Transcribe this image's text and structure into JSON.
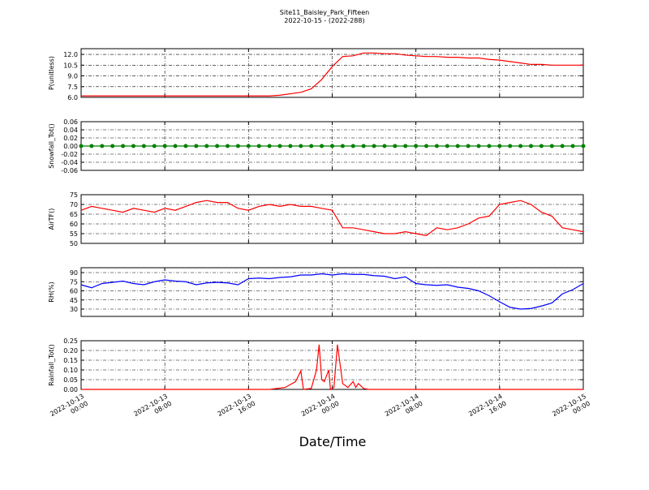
{
  "title": "Site11_Baisley_Park_Fifteen",
  "subtitle": "2022-10-15 - (2022-288)",
  "xlabel": "Date/Time",
  "chart_data": [
    {
      "type": "line",
      "ylabel": "P(unitless)",
      "color": "#ff0000",
      "grid": true,
      "xlim": [
        "2022-10-13 00:00",
        "2022-10-15 00:00"
      ],
      "ylim": [
        6,
        12.8
      ],
      "yticks": [
        {
          "value": 6,
          "label": "6.0"
        },
        7.5,
        {
          "value": 9,
          "label": "9.0"
        },
        10.5,
        {
          "value": 12,
          "label": "12.0"
        }
      ],
      "x": [
        "2022-10-13 00:00",
        "2022-10-13 01:00",
        "2022-10-13 02:00",
        "2022-10-13 03:00",
        "2022-10-13 04:00",
        "2022-10-13 05:00",
        "2022-10-13 06:00",
        "2022-10-13 07:00",
        "2022-10-13 08:00",
        "2022-10-13 09:00",
        "2022-10-13 10:00",
        "2022-10-13 11:00",
        "2022-10-13 12:00",
        "2022-10-13 13:00",
        "2022-10-13 14:00",
        "2022-10-13 15:00",
        "2022-10-13 16:00",
        "2022-10-13 17:00",
        "2022-10-13 18:00",
        "2022-10-13 19:00",
        "2022-10-13 20:00",
        "2022-10-13 21:00",
        "2022-10-13 22:00",
        "2022-10-13 23:00",
        "2022-10-14 00:00",
        "2022-10-14 01:00",
        "2022-10-14 02:00",
        "2022-10-14 03:00",
        "2022-10-14 04:00",
        "2022-10-14 05:00",
        "2022-10-14 06:00",
        "2022-10-14 07:00",
        "2022-10-14 08:00",
        "2022-10-14 09:00",
        "2022-10-14 10:00",
        "2022-10-14 11:00",
        "2022-10-14 12:00",
        "2022-10-14 13:00",
        "2022-10-14 14:00",
        "2022-10-14 15:00",
        "2022-10-14 16:00",
        "2022-10-14 17:00",
        "2022-10-14 18:00",
        "2022-10-14 19:00",
        "2022-10-14 20:00",
        "2022-10-14 21:00",
        "2022-10-14 22:00",
        "2022-10-14 23:00",
        "2022-10-15 00:00"
      ],
      "values": [
        6.2,
        6.2,
        6.2,
        6.2,
        6.2,
        6.2,
        6.2,
        6.2,
        6.2,
        6.2,
        6.2,
        6.2,
        6.2,
        6.2,
        6.2,
        6.2,
        6.2,
        6.2,
        6.2,
        6.3,
        6.5,
        6.7,
        7.2,
        8.5,
        10.3,
        11.7,
        11.8,
        12.2,
        12.2,
        12.1,
        12.1,
        11.9,
        11.8,
        11.7,
        11.7,
        11.6,
        11.6,
        11.5,
        11.5,
        11.3,
        11.2,
        11.0,
        10.8,
        10.6,
        10.6,
        10.5,
        10.5,
        10.5,
        10.5
      ]
    },
    {
      "type": "line",
      "ylabel": "Snowfall_Tot()",
      "color": "#008000",
      "marker": "o",
      "grid": true,
      "xlim": [
        "2022-10-13 00:00",
        "2022-10-15 00:00"
      ],
      "ylim": [
        -0.06,
        0.06
      ],
      "yticks": [
        -0.06,
        -0.04,
        -0.02,
        {
          "value": 0,
          "label": "0.00"
        },
        0.02,
        0.04,
        0.06
      ],
      "x": [
        "2022-10-13 00:00",
        "2022-10-13 01:00",
        "2022-10-13 02:00",
        "2022-10-13 03:00",
        "2022-10-13 04:00",
        "2022-10-13 05:00",
        "2022-10-13 06:00",
        "2022-10-13 07:00",
        "2022-10-13 08:00",
        "2022-10-13 09:00",
        "2022-10-13 10:00",
        "2022-10-13 11:00",
        "2022-10-13 12:00",
        "2022-10-13 13:00",
        "2022-10-13 14:00",
        "2022-10-13 15:00",
        "2022-10-13 16:00",
        "2022-10-13 17:00",
        "2022-10-13 18:00",
        "2022-10-13 19:00",
        "2022-10-13 20:00",
        "2022-10-13 21:00",
        "2022-10-13 22:00",
        "2022-10-13 23:00",
        "2022-10-14 00:00",
        "2022-10-14 01:00",
        "2022-10-14 02:00",
        "2022-10-14 03:00",
        "2022-10-14 04:00",
        "2022-10-14 05:00",
        "2022-10-14 06:00",
        "2022-10-14 07:00",
        "2022-10-14 08:00",
        "2022-10-14 09:00",
        "2022-10-14 10:00",
        "2022-10-14 11:00",
        "2022-10-14 12:00",
        "2022-10-14 13:00",
        "2022-10-14 14:00",
        "2022-10-14 15:00",
        "2022-10-14 16:00",
        "2022-10-14 17:00",
        "2022-10-14 18:00",
        "2022-10-14 19:00",
        "2022-10-14 20:00",
        "2022-10-14 21:00",
        "2022-10-14 22:00",
        "2022-10-14 23:00",
        "2022-10-15 00:00"
      ],
      "values": [
        0,
        0,
        0,
        0,
        0,
        0,
        0,
        0,
        0,
        0,
        0,
        0,
        0,
        0,
        0,
        0,
        0,
        0,
        0,
        0,
        0,
        0,
        0,
        0,
        0,
        0,
        0,
        0,
        0,
        0,
        0,
        0,
        0,
        0,
        0,
        0,
        0,
        0,
        0,
        0,
        0,
        0,
        0,
        0,
        0,
        0,
        0,
        0,
        0
      ]
    },
    {
      "type": "line",
      "ylabel": "AirTF()",
      "color": "#ff0000",
      "grid": true,
      "xlim": [
        "2022-10-13 00:00",
        "2022-10-15 00:00"
      ],
      "ylim": [
        50,
        75
      ],
      "yticks": [
        50,
        55,
        60,
        65,
        70,
        75
      ],
      "x": [
        "2022-10-13 00:00",
        "2022-10-13 01:00",
        "2022-10-13 02:00",
        "2022-10-13 03:00",
        "2022-10-13 04:00",
        "2022-10-13 05:00",
        "2022-10-13 06:00",
        "2022-10-13 07:00",
        "2022-10-13 08:00",
        "2022-10-13 09:00",
        "2022-10-13 10:00",
        "2022-10-13 11:00",
        "2022-10-13 12:00",
        "2022-10-13 13:00",
        "2022-10-13 14:00",
        "2022-10-13 15:00",
        "2022-10-13 16:00",
        "2022-10-13 17:00",
        "2022-10-13 18:00",
        "2022-10-13 19:00",
        "2022-10-13 20:00",
        "2022-10-13 21:00",
        "2022-10-13 22:00",
        "2022-10-13 23:00",
        "2022-10-14 00:00",
        "2022-10-14 01:00",
        "2022-10-14 02:00",
        "2022-10-14 03:00",
        "2022-10-14 04:00",
        "2022-10-14 05:00",
        "2022-10-14 06:00",
        "2022-10-14 07:00",
        "2022-10-14 08:00",
        "2022-10-14 09:00",
        "2022-10-14 10:00",
        "2022-10-14 11:00",
        "2022-10-14 12:00",
        "2022-10-14 13:00",
        "2022-10-14 14:00",
        "2022-10-14 15:00",
        "2022-10-14 16:00",
        "2022-10-14 17:00",
        "2022-10-14 18:00",
        "2022-10-14 19:00",
        "2022-10-14 20:00",
        "2022-10-14 21:00",
        "2022-10-14 22:00",
        "2022-10-14 23:00",
        "2022-10-15 00:00"
      ],
      "values": [
        67,
        69,
        68,
        67,
        66,
        68,
        67,
        66,
        68,
        67,
        69,
        71,
        72,
        71,
        71,
        68,
        67,
        69,
        70,
        69,
        70,
        69,
        69,
        68,
        67,
        58,
        58,
        57,
        56,
        55,
        55,
        56,
        55,
        54,
        58,
        57,
        58,
        60,
        63,
        64,
        70,
        71,
        72,
        70,
        66,
        64,
        58,
        57,
        56
      ]
    },
    {
      "type": "line",
      "ylabel": "RH(%)",
      "color": "#0000ff",
      "grid": true,
      "xlim": [
        "2022-10-13 00:00",
        "2022-10-15 00:00"
      ],
      "ylim": [
        18,
        98
      ],
      "yticks": [
        30,
        45,
        60,
        75,
        90
      ],
      "x": [
        "2022-10-13 00:00",
        "2022-10-13 01:00",
        "2022-10-13 02:00",
        "2022-10-13 03:00",
        "2022-10-13 04:00",
        "2022-10-13 05:00",
        "2022-10-13 06:00",
        "2022-10-13 07:00",
        "2022-10-13 08:00",
        "2022-10-13 09:00",
        "2022-10-13 10:00",
        "2022-10-13 11:00",
        "2022-10-13 12:00",
        "2022-10-13 13:00",
        "2022-10-13 14:00",
        "2022-10-13 15:00",
        "2022-10-13 16:00",
        "2022-10-13 17:00",
        "2022-10-13 18:00",
        "2022-10-13 19:00",
        "2022-10-13 20:00",
        "2022-10-13 21:00",
        "2022-10-13 22:00",
        "2022-10-13 23:00",
        "2022-10-14 00:00",
        "2022-10-14 01:00",
        "2022-10-14 02:00",
        "2022-10-14 03:00",
        "2022-10-14 04:00",
        "2022-10-14 05:00",
        "2022-10-14 06:00",
        "2022-10-14 07:00",
        "2022-10-14 08:00",
        "2022-10-14 09:00",
        "2022-10-14 10:00",
        "2022-10-14 11:00",
        "2022-10-14 12:00",
        "2022-10-14 13:00",
        "2022-10-14 14:00",
        "2022-10-14 15:00",
        "2022-10-14 16:00",
        "2022-10-14 17:00",
        "2022-10-14 18:00",
        "2022-10-14 19:00",
        "2022-10-14 20:00",
        "2022-10-14 21:00",
        "2022-10-14 22:00",
        "2022-10-14 23:00",
        "2022-10-15 00:00"
      ],
      "values": [
        70,
        65,
        72,
        74,
        76,
        72,
        70,
        75,
        78,
        76,
        75,
        70,
        73,
        74,
        73,
        70,
        80,
        81,
        80,
        82,
        83,
        86,
        86,
        88,
        86,
        88,
        87,
        87,
        85,
        84,
        80,
        83,
        72,
        70,
        69,
        70,
        66,
        64,
        60,
        52,
        42,
        33,
        30,
        31,
        35,
        40,
        55,
        62,
        72
      ]
    },
    {
      "type": "line",
      "ylabel": "Rainfall_Tot()",
      "color": "#ff0000",
      "grid": true,
      "xlim": [
        "2022-10-13 00:00",
        "2022-10-15 00:00"
      ],
      "ylim": [
        0,
        0.25
      ],
      "yticks": [
        {
          "value": 0,
          "label": "0.00"
        },
        0.05,
        {
          "value": 0.1,
          "label": "0.10"
        },
        0.15,
        {
          "value": 0.2,
          "label": "0.20"
        },
        0.25
      ],
      "xticks": [
        "2022-10-13 00:00",
        "2022-10-13 08:00",
        "2022-10-13 16:00",
        "2022-10-14 00:00",
        "2022-10-14 08:00",
        "2022-10-14 16:00",
        "2022-10-15 00:00"
      ],
      "x": [
        "2022-10-13 00:00",
        "2022-10-13 18:00",
        "2022-10-13 19:30",
        "2022-10-13 20:30",
        "2022-10-13 21:00",
        "2022-10-13 21:15",
        "2022-10-13 22:00",
        "2022-10-13 22:30",
        "2022-10-13 22:45",
        "2022-10-13 23:00",
        "2022-10-13 23:15",
        "2022-10-13 23:40",
        "2022-10-13 23:50",
        "2022-10-14 00:10",
        "2022-10-14 00:30",
        "2022-10-14 01:00",
        "2022-10-14 01:30",
        "2022-10-14 02:00",
        "2022-10-14 02:15",
        "2022-10-14 02:30",
        "2022-10-14 03:00",
        "2022-10-14 03:30",
        "2022-10-15 00:00"
      ],
      "values": [
        0,
        0,
        0.01,
        0.04,
        0.095,
        0,
        0.005,
        0.1,
        0.23,
        0.05,
        0.04,
        0.1,
        0,
        0.01,
        0.23,
        0.03,
        0.01,
        0.04,
        0.01,
        0.03,
        0.005,
        0,
        0
      ]
    }
  ]
}
